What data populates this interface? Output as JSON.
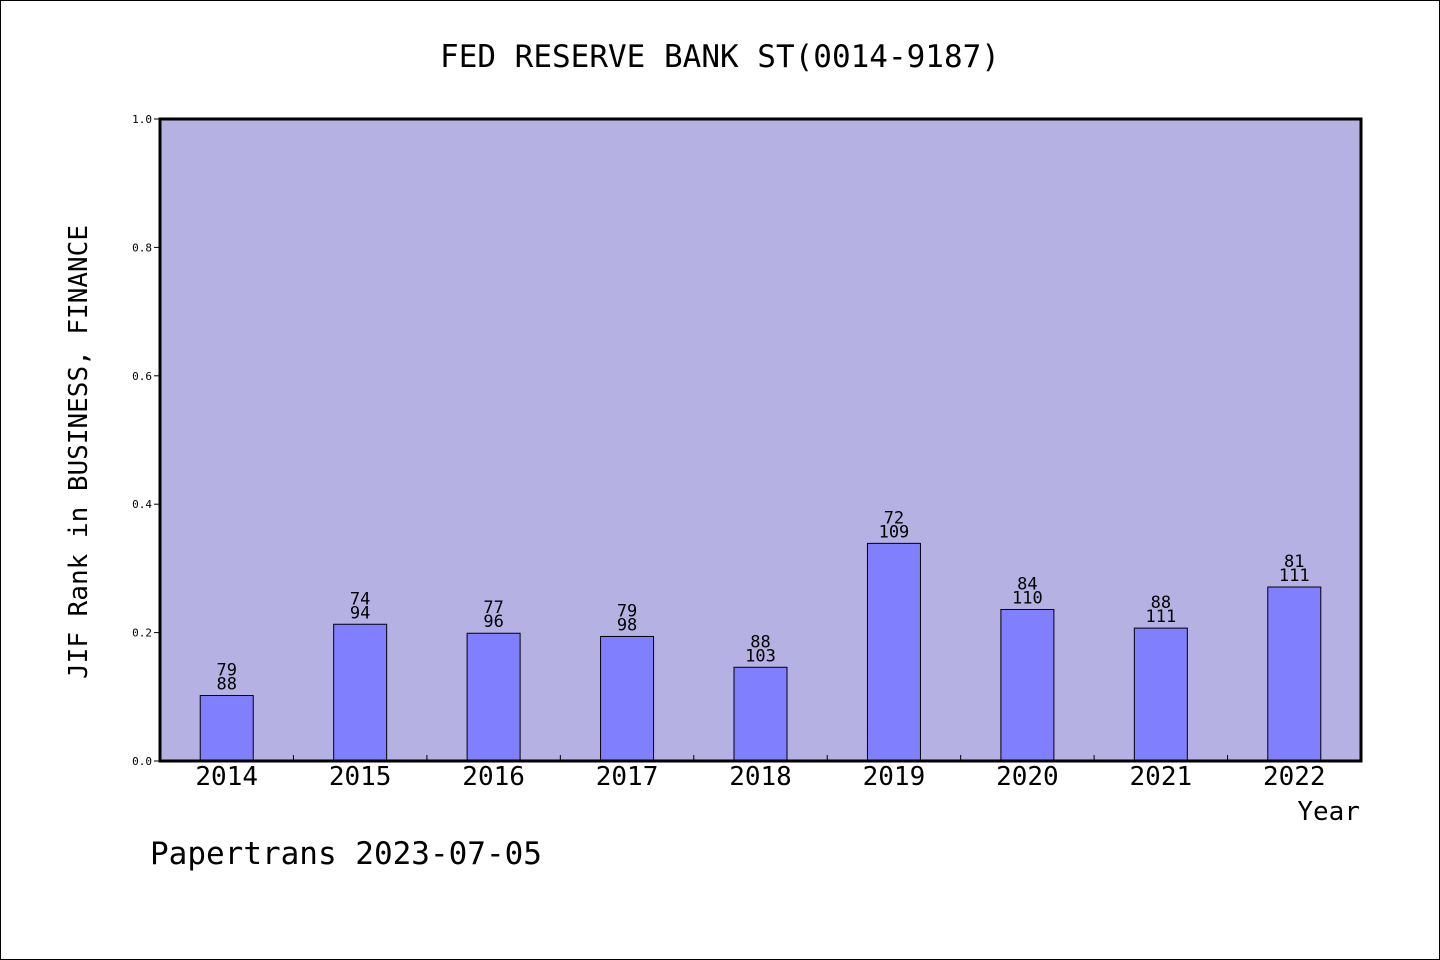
{
  "footer": "Papertrans 2023-07-05",
  "colors": {
    "plot_background": "#b6b1e3",
    "bar_fill": "#8080ff",
    "axis": "#000000"
  },
  "chart_data": {
    "type": "bar",
    "title": "FED RESERVE BANK ST(0014-9187)",
    "xlabel": "Year",
    "ylabel": "JIF Rank in BUSINESS, FINANCE",
    "ylim": [
      0,
      1.0
    ],
    "yticks": [
      "0.0",
      "0.2",
      "0.4",
      "0.6",
      "0.8",
      "1.0"
    ],
    "grid": false,
    "categories": [
      "2014",
      "2015",
      "2016",
      "2017",
      "2018",
      "2019",
      "2020",
      "2021",
      "2022"
    ],
    "values": [
      0.102,
      0.213,
      0.199,
      0.194,
      0.146,
      0.339,
      0.236,
      0.207,
      0.271
    ],
    "rank": [
      "79",
      "74",
      "77",
      "79",
      "88",
      "72",
      "84",
      "88",
      "81"
    ],
    "total": [
      "88",
      "94",
      "96",
      "98",
      "103",
      "109",
      "110",
      "111",
      "111"
    ]
  }
}
